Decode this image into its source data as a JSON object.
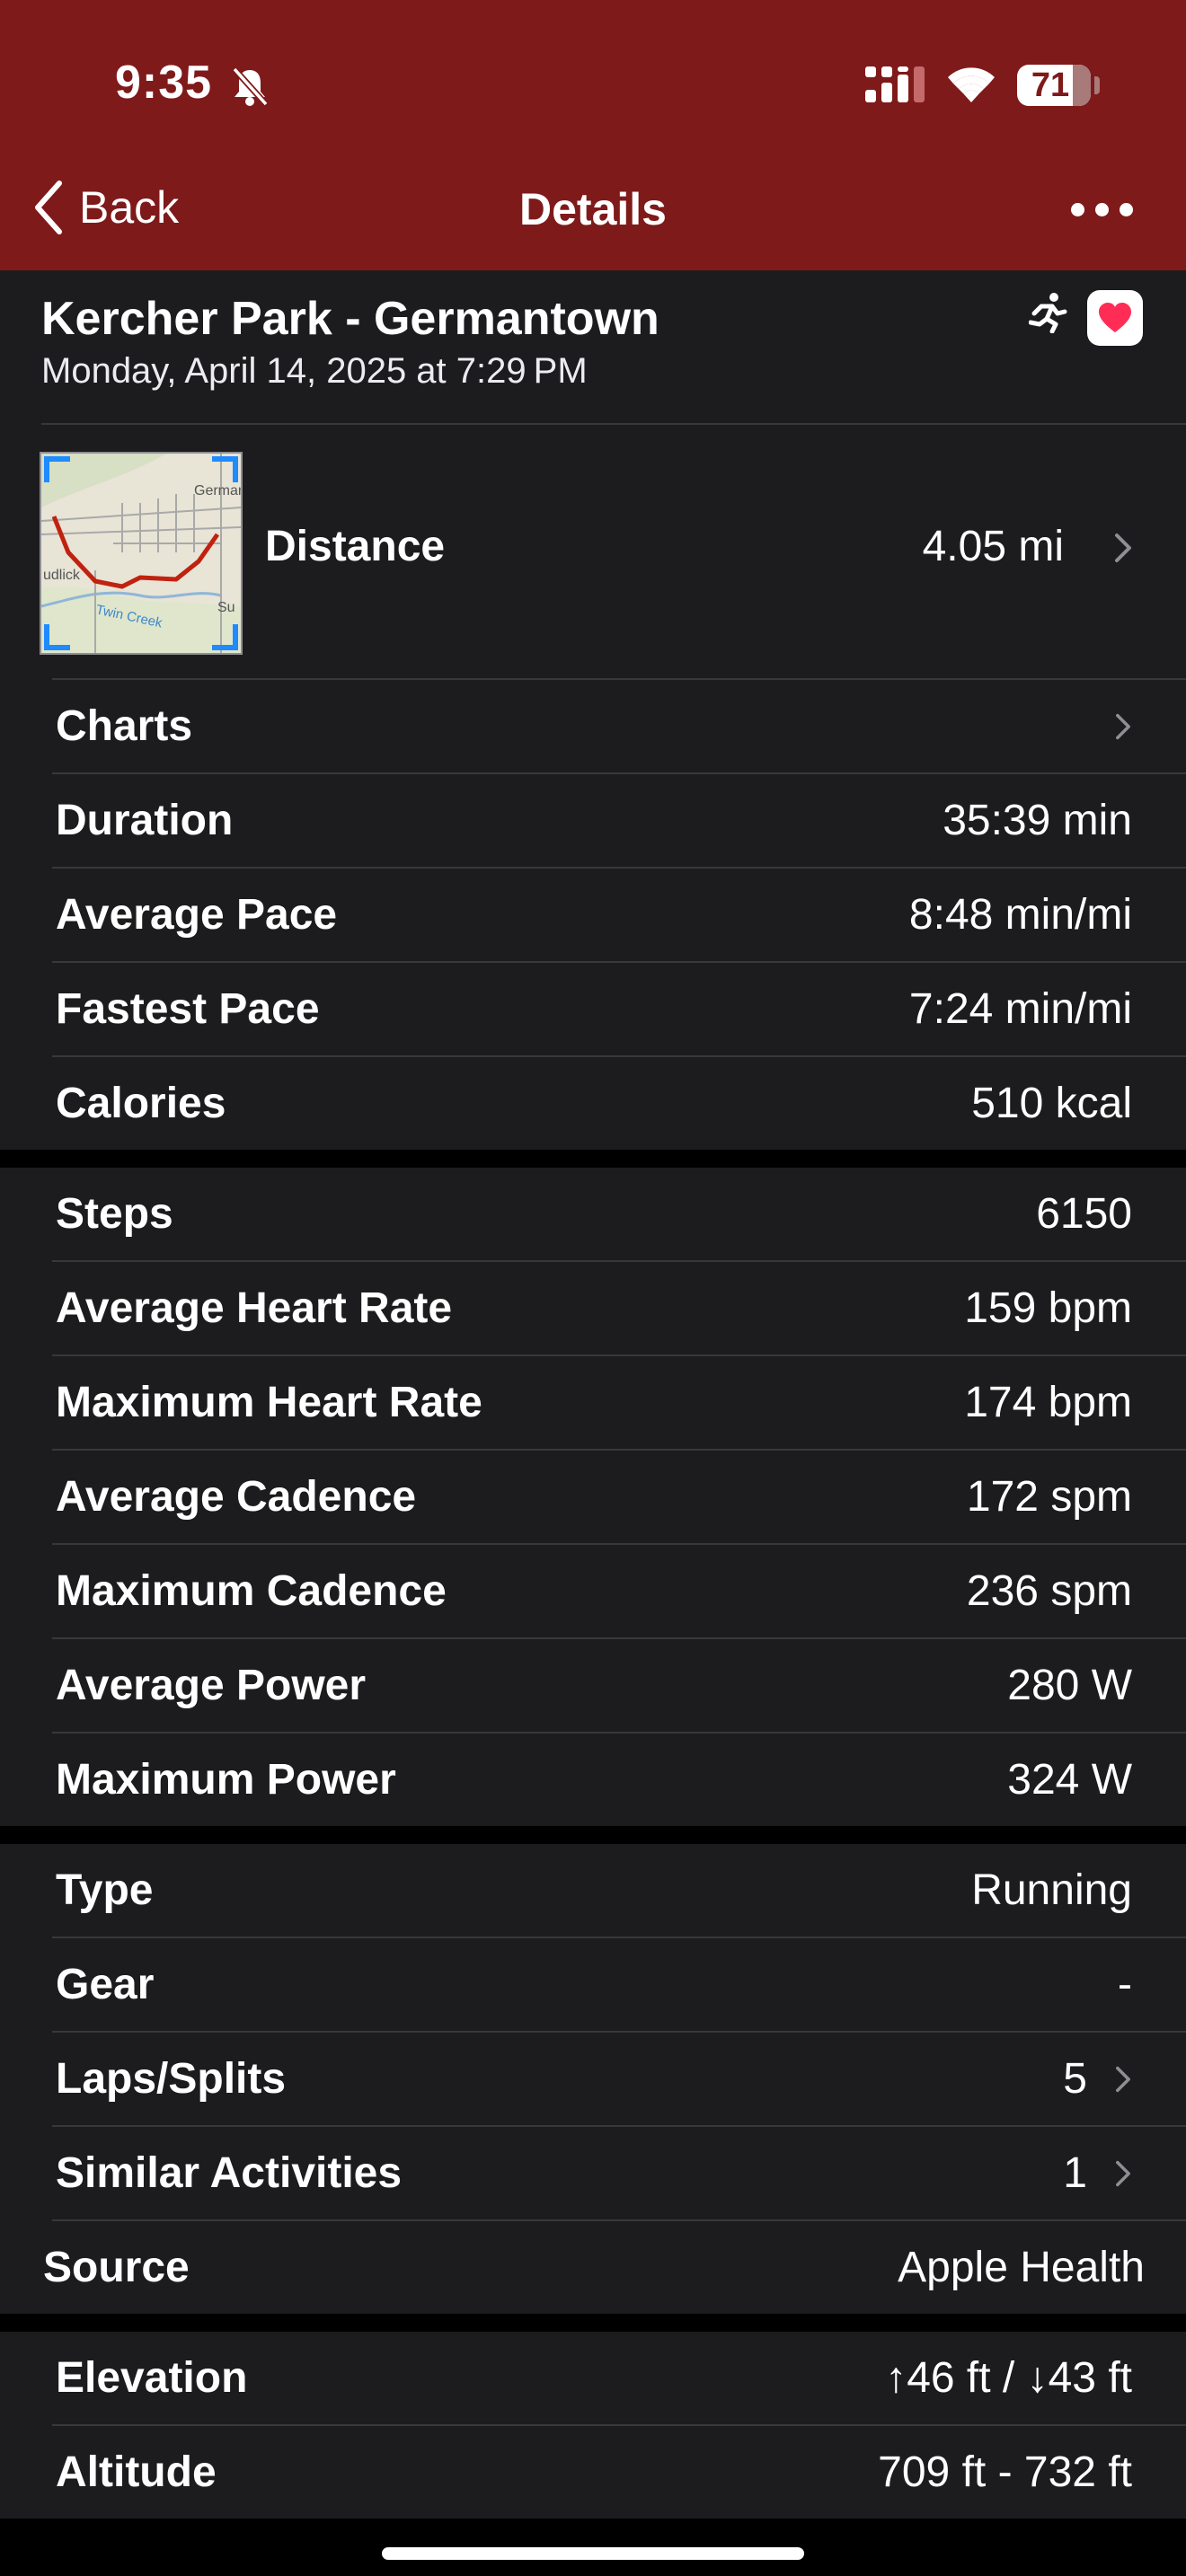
{
  "status_bar": {
    "time": "9:35",
    "battery": "71"
  },
  "nav": {
    "back_label": "Back",
    "title": "Details"
  },
  "activity": {
    "title": "Kercher Park - Germantown",
    "datetime": "Monday, April 14, 2025 at 7:29 PM",
    "distance_label": "Distance",
    "distance_value": "4.05 mi",
    "map_labels": {
      "town": "Germant",
      "creek": "Twin Creek",
      "left": "udlick",
      "right": "Su"
    }
  },
  "section1": [
    {
      "label": "Charts",
      "value": "",
      "chevron": true
    },
    {
      "label": "Duration",
      "value": "35:39 min"
    },
    {
      "label": "Average Pace",
      "value": "8:48 min/mi"
    },
    {
      "label": "Fastest Pace",
      "value": "7:24 min/mi"
    },
    {
      "label": "Calories",
      "value": "510 kcal"
    }
  ],
  "section2": [
    {
      "label": "Steps",
      "value": "6150"
    },
    {
      "label": "Average Heart Rate",
      "value": "159 bpm"
    },
    {
      "label": "Maximum Heart Rate",
      "value": "174 bpm"
    },
    {
      "label": "Average Cadence",
      "value": "172 spm"
    },
    {
      "label": "Maximum Cadence",
      "value": "236 spm"
    },
    {
      "label": "Average Power",
      "value": "280 W"
    },
    {
      "label": "Maximum Power",
      "value": "324 W"
    }
  ],
  "section3": [
    {
      "label": "Type",
      "value": "Running"
    },
    {
      "label": "Gear",
      "value": "-"
    },
    {
      "label": "Laps/Splits",
      "value": "5",
      "chevron": true
    },
    {
      "label": "Similar Activities",
      "value": "1",
      "chevron": true
    },
    {
      "label": "Source",
      "value": "Apple Health"
    }
  ],
  "section4": [
    {
      "label": "Elevation",
      "value": "↑46 ft / ↓43 ft"
    },
    {
      "label": "Altitude",
      "value": "709 ft - 732 ft"
    }
  ],
  "colors": {
    "header": "#7f1a1a",
    "row_bg": "#1c1c1e",
    "separator": "#38383a",
    "chevron": "#8e8e93"
  }
}
